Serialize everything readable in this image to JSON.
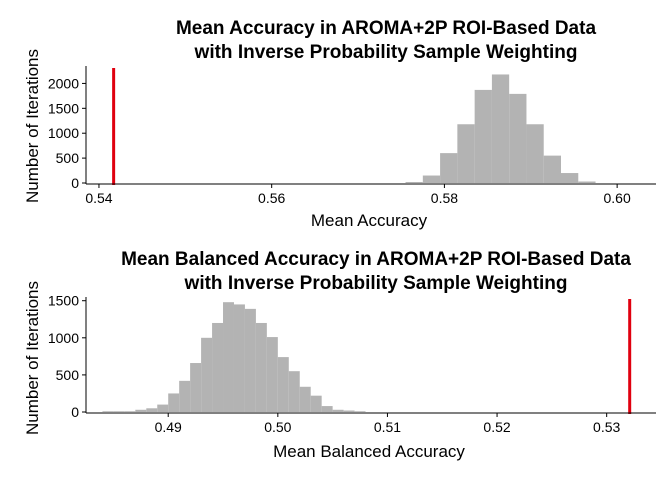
{
  "chart_data": [
    {
      "type": "histogram",
      "title": "Mean Accuracy in AROMA+2P ROI-Based Data",
      "subtitle": "with Inverse Probability Sample Weighting",
      "xlabel": "Mean Accuracy",
      "ylabel": "Number of Iterations",
      "xlim": [
        0.5385,
        0.6045
      ],
      "ylim": [
        0,
        2350
      ],
      "xticks": [
        0.54,
        0.56,
        0.58,
        0.6
      ],
      "xtick_labels": [
        "0.54",
        "0.56",
        "0.58",
        "0.60"
      ],
      "yticks": [
        0,
        500,
        1000,
        1500,
        2000
      ],
      "ytick_labels": [
        "0",
        "500",
        "1000",
        "1500",
        "2000"
      ],
      "bin_width": 0.002,
      "bins": [
        {
          "start": 0.5755,
          "count": 20
        },
        {
          "start": 0.5775,
          "count": 150
        },
        {
          "start": 0.5795,
          "count": 600
        },
        {
          "start": 0.5815,
          "count": 1180
        },
        {
          "start": 0.5835,
          "count": 1870
        },
        {
          "start": 0.5855,
          "count": 2180
        },
        {
          "start": 0.5875,
          "count": 1790
        },
        {
          "start": 0.5895,
          "count": 1180
        },
        {
          "start": 0.5915,
          "count": 550
        },
        {
          "start": 0.5935,
          "count": 200
        },
        {
          "start": 0.5955,
          "count": 30
        }
      ],
      "bar_color": "#b3b3b3",
      "reference_line": {
        "x": 0.5417,
        "color": "#e0000f"
      }
    },
    {
      "type": "histogram",
      "title": "Mean Balanced Accuracy in AROMA+2P ROI-Based Data",
      "subtitle": "with Inverse Probability Sample Weighting",
      "xlabel": "Mean Balanced Accuracy",
      "ylabel": "Number of Iterations",
      "xlim": [
        0.4825,
        0.5345
      ],
      "ylim": [
        0,
        1550
      ],
      "xticks": [
        0.49,
        0.5,
        0.51,
        0.52,
        0.53
      ],
      "xtick_labels": [
        "0.49",
        "0.50",
        "0.51",
        "0.52",
        "0.53"
      ],
      "yticks": [
        0,
        500,
        1000,
        1500
      ],
      "ytick_labels": [
        "0",
        "500",
        "1000",
        "1500"
      ],
      "bin_width": 0.001,
      "bins": [
        {
          "start": 0.484,
          "count": 10
        },
        {
          "start": 0.485,
          "count": 10
        },
        {
          "start": 0.486,
          "count": 10
        },
        {
          "start": 0.487,
          "count": 30
        },
        {
          "start": 0.488,
          "count": 50
        },
        {
          "start": 0.489,
          "count": 100
        },
        {
          "start": 0.49,
          "count": 250
        },
        {
          "start": 0.491,
          "count": 420
        },
        {
          "start": 0.492,
          "count": 660
        },
        {
          "start": 0.493,
          "count": 1000
        },
        {
          "start": 0.494,
          "count": 1200
        },
        {
          "start": 0.495,
          "count": 1480
        },
        {
          "start": 0.496,
          "count": 1450
        },
        {
          "start": 0.497,
          "count": 1390
        },
        {
          "start": 0.498,
          "count": 1200
        },
        {
          "start": 0.499,
          "count": 1010
        },
        {
          "start": 0.5,
          "count": 740
        },
        {
          "start": 0.501,
          "count": 550
        },
        {
          "start": 0.502,
          "count": 340
        },
        {
          "start": 0.503,
          "count": 220
        },
        {
          "start": 0.504,
          "count": 80
        },
        {
          "start": 0.505,
          "count": 30
        },
        {
          "start": 0.506,
          "count": 20
        },
        {
          "start": 0.507,
          "count": 10
        }
      ],
      "bar_color": "#b3b3b3",
      "reference_line": {
        "x": 0.5321,
        "color": "#e0000f"
      }
    }
  ]
}
